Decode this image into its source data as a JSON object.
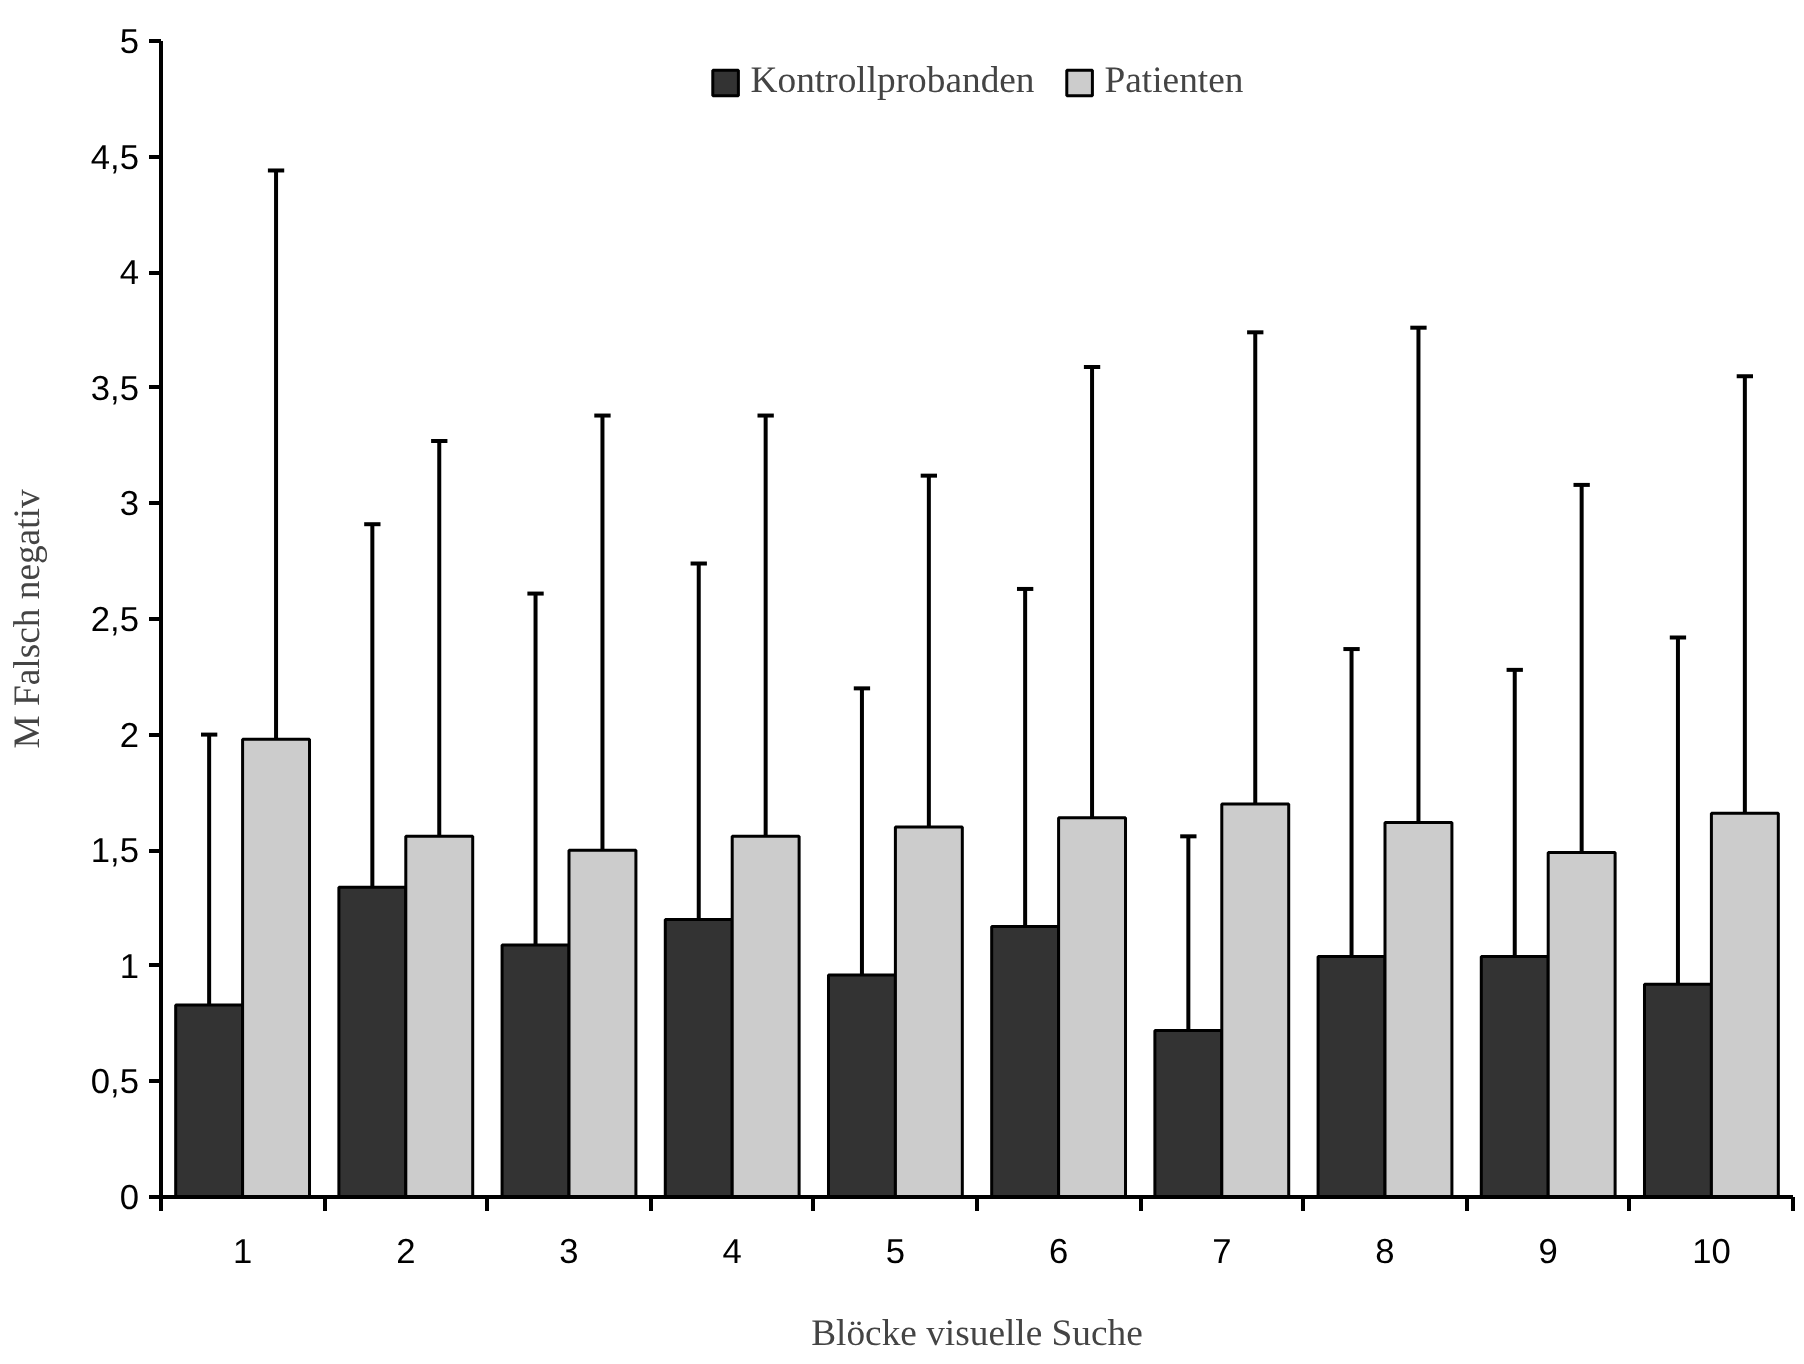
{
  "chart_data": {
    "type": "bar",
    "xlabel": "Blöcke visuelle Suche",
    "ylabel": "M Falsch negativ",
    "categories": [
      "1",
      "2",
      "3",
      "4",
      "5",
      "6",
      "7",
      "8",
      "9",
      "10"
    ],
    "series": [
      {
        "name": "Kontrollprobanden",
        "color": "#333333",
        "values": [
          0.83,
          1.34,
          1.09,
          1.2,
          0.96,
          1.17,
          0.72,
          1.04,
          1.04,
          0.92
        ],
        "errors": [
          [
            0.83,
            2.0
          ],
          [
            1.34,
            2.91
          ],
          [
            1.09,
            2.61
          ],
          [
            1.2,
            2.74
          ],
          [
            0.96,
            2.2
          ],
          [
            1.17,
            2.63
          ],
          [
            0.72,
            1.56
          ],
          [
            1.04,
            2.37
          ],
          [
            1.04,
            2.28
          ],
          [
            0.92,
            2.42
          ]
        ]
      },
      {
        "name": "Patienten",
        "color": "#cccccc",
        "values": [
          1.98,
          1.56,
          1.5,
          1.56,
          1.6,
          1.64,
          1.7,
          1.62,
          1.49,
          1.66
        ],
        "errors": [
          [
            1.98,
            4.44
          ],
          [
            1.56,
            3.27
          ],
          [
            1.5,
            3.38
          ],
          [
            1.56,
            3.38
          ],
          [
            1.6,
            3.12
          ],
          [
            1.64,
            3.59
          ],
          [
            1.7,
            3.74
          ],
          [
            1.62,
            3.76
          ],
          [
            1.49,
            3.08
          ],
          [
            1.66,
            3.55
          ]
        ]
      }
    ],
    "ylim": [
      0,
      5
    ],
    "yticks": [
      0,
      {
        "value": 0.5,
        "label": "0,5"
      },
      1,
      {
        "value": 1.5,
        "label": "1,5"
      },
      2,
      {
        "value": 2.5,
        "label": "2,5"
      },
      3,
      {
        "value": 3.5,
        "label": "3,5"
      },
      4,
      {
        "value": 4.5,
        "label": "4,5"
      },
      5
    ],
    "grid": false,
    "legend": "top"
  }
}
